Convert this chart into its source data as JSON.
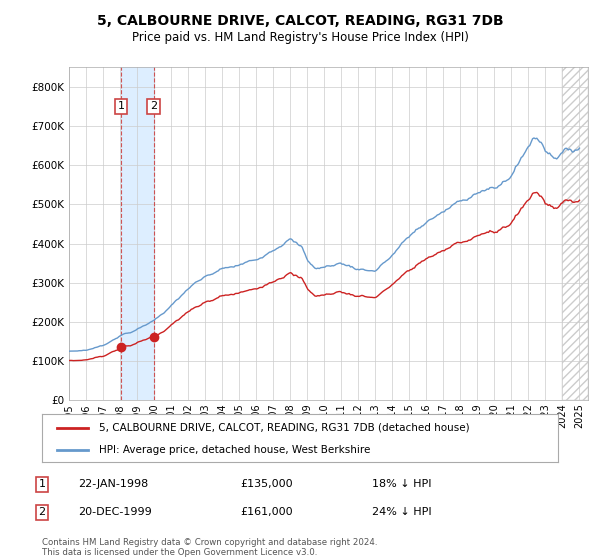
{
  "title": "5, CALBOURNE DRIVE, CALCOT, READING, RG31 7DB",
  "subtitle": "Price paid vs. HM Land Registry's House Price Index (HPI)",
  "hpi_label": "HPI: Average price, detached house, West Berkshire",
  "price_label": "5, CALBOURNE DRIVE, CALCOT, READING, RG31 7DB (detached house)",
  "footer": "Contains HM Land Registry data © Crown copyright and database right 2024.\nThis data is licensed under the Open Government Licence v3.0.",
  "transactions": [
    {
      "num": 1,
      "date": "22-JAN-1998",
      "price": 135000,
      "pct": "18% ↓ HPI",
      "x": 1998.06
    },
    {
      "num": 2,
      "date": "20-DEC-1999",
      "price": 161000,
      "pct": "24% ↓ HPI",
      "x": 1999.97
    }
  ],
  "hpi_color": "#6699cc",
  "price_color": "#cc2222",
  "marker_color": "#cc2222",
  "vline_color": "#cc4444",
  "shade_color": "#ddeeff",
  "bg_color": "#ffffff",
  "grid_color": "#cccccc",
  "ylim": [
    0,
    850000
  ],
  "xlim_start": 1995.0,
  "xlim_end": 2025.5,
  "hatch_start": 2024.0
}
